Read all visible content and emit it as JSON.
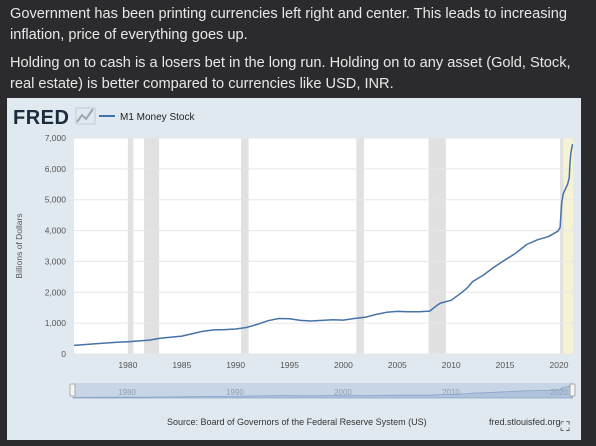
{
  "post": {
    "paragraph1": "Government has been printing currencies left right and center. This leads to increasing inflation, price of everything goes up.",
    "paragraph2": "Holding on to cash is a losers bet in the long run. Holding on to any asset (Gold, Stock, real estate) is better compared to currencies like USD, INR."
  },
  "chart_card": {
    "logo_text": "FRED",
    "source": "Source: Board of Governors of the Federal Reserve System (US)",
    "site": "fred.stlouisfed.org",
    "colors": {
      "card_bg": "#e1e9f0",
      "plot_bg": "#ffffff",
      "line": "#4572a7",
      "recession": "#e1e1e1",
      "highlight": "#f6f3d4",
      "navigator": "#afc3dd"
    },
    "navigator_labels": [
      "1980",
      "1990",
      "2000",
      "2010",
      "2020"
    ]
  },
  "chart_data": {
    "type": "line",
    "title": "",
    "xlabel": "",
    "ylabel": "Billions of Dollars",
    "xlim": [
      1975.0,
      2021.3
    ],
    "ylim": [
      0,
      7000
    ],
    "x_ticks": [
      1980,
      1985,
      1990,
      1995,
      2000,
      2005,
      2010,
      2015,
      2020
    ],
    "y_ticks": [
      0,
      1000,
      2000,
      3000,
      4000,
      5000,
      6000,
      7000
    ],
    "y_tick_labels": [
      "0",
      "1,000",
      "2,000",
      "3,000",
      "4,000",
      "5,000",
      "6,000",
      "7,000"
    ],
    "legend": "top-left",
    "grid": "horizontal",
    "recessions": [
      [
        1980.0,
        1980.5
      ],
      [
        1981.5,
        1982.9
      ],
      [
        1990.5,
        1991.2
      ],
      [
        2001.2,
        2001.9
      ],
      [
        2007.9,
        2009.5
      ],
      [
        2020.1,
        2020.4
      ]
    ],
    "highlight": [
      2020.1,
      2021.3
    ],
    "series": [
      {
        "name": "M1 Money Stock",
        "x": [
          1975.0,
          1977,
          1979,
          1980,
          1982,
          1983,
          1985,
          1986,
          1987,
          1988,
          1989,
          1990,
          1991,
          1992,
          1993,
          1994,
          1995,
          1996,
          1997,
          1998,
          1999,
          2000,
          2001,
          2002,
          2003,
          2004,
          2005,
          2006,
          2007,
          2008,
          2008.7,
          2009,
          2010,
          2011,
          2011.5,
          2012,
          2013,
          2014,
          2015,
          2016,
          2017,
          2018,
          2019,
          2019.9,
          2020.1,
          2020.25,
          2020.4,
          2020.8,
          2020.95,
          2021.0,
          2021.1,
          2021.2,
          2021.25
        ],
        "values": [
          280,
          330,
          380,
          400,
          450,
          510,
          580,
          660,
          740,
          780,
          790,
          810,
          860,
          960,
          1080,
          1150,
          1140,
          1090,
          1070,
          1090,
          1110,
          1100,
          1150,
          1190,
          1280,
          1350,
          1380,
          1370,
          1370,
          1390,
          1580,
          1650,
          1740,
          2000,
          2150,
          2350,
          2560,
          2820,
          3050,
          3270,
          3550,
          3700,
          3800,
          3980,
          4100,
          4900,
          5200,
          5500,
          5700,
          6100,
          6500,
          6700,
          6800
        ]
      }
    ]
  }
}
